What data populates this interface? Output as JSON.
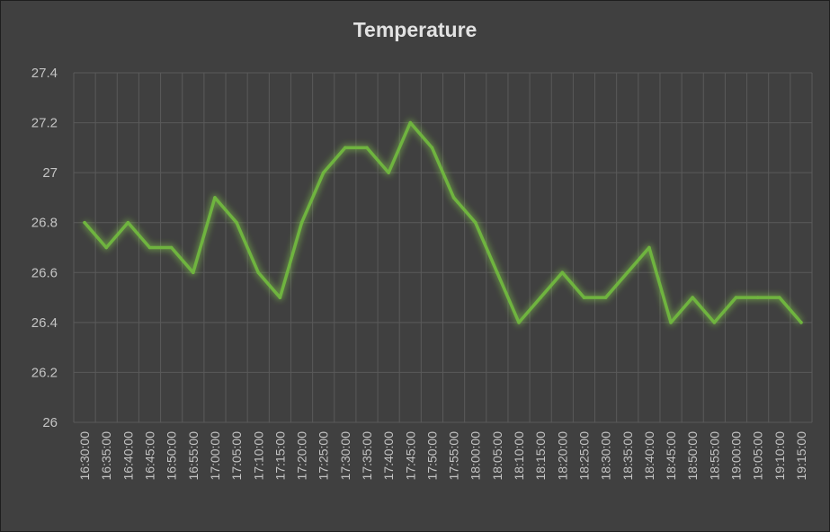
{
  "chart_data": {
    "type": "line",
    "title": "Temperature",
    "xlabel": "",
    "ylabel": "",
    "ylim": [
      26,
      27.4
    ],
    "y_ticks": [
      "26",
      "26.2",
      "26.4",
      "26.6",
      "26.8",
      "27",
      "27.2",
      "27.4"
    ],
    "grid": "on",
    "legend": "none",
    "categories": [
      "16:30:00",
      "16:35:00",
      "16:40:00",
      "16:45:00",
      "16:50:00",
      "16:55:00",
      "17:00:00",
      "17:05:00",
      "17:10:00",
      "17:15:00",
      "17:20:00",
      "17:25:00",
      "17:30:00",
      "17:35:00",
      "17:40:00",
      "17:45:00",
      "17:50:00",
      "17:55:00",
      "18:00:00",
      "18:05:00",
      "18:10:00",
      "18:15:00",
      "18:20:00",
      "18:25:00",
      "18:30:00",
      "18:35:00",
      "18:40:00",
      "18:45:00",
      "18:50:00",
      "18:55:00",
      "19:00:00",
      "19:05:00",
      "19:10:00",
      "19:15:00"
    ],
    "series": [
      {
        "values": [
          26.8,
          26.7,
          26.8,
          26.7,
          26.7,
          26.6,
          26.9,
          26.8,
          26.6,
          26.5,
          26.8,
          27.0,
          27.1,
          27.1,
          27.0,
          27.2,
          27.1,
          26.9,
          26.8,
          26.6,
          26.4,
          26.5,
          26.6,
          26.5,
          26.5,
          26.6,
          26.7,
          26.4,
          26.5,
          26.4,
          26.5,
          26.5,
          26.5,
          26.4
        ],
        "color": "#6fb43f"
      }
    ],
    "colors": {
      "background": "#404040",
      "gridline": "#5a5a5a",
      "text": "#c4c4c4",
      "title": "#e2e2e2",
      "line": "#6fb43f",
      "glow": "#8fe04a"
    }
  }
}
